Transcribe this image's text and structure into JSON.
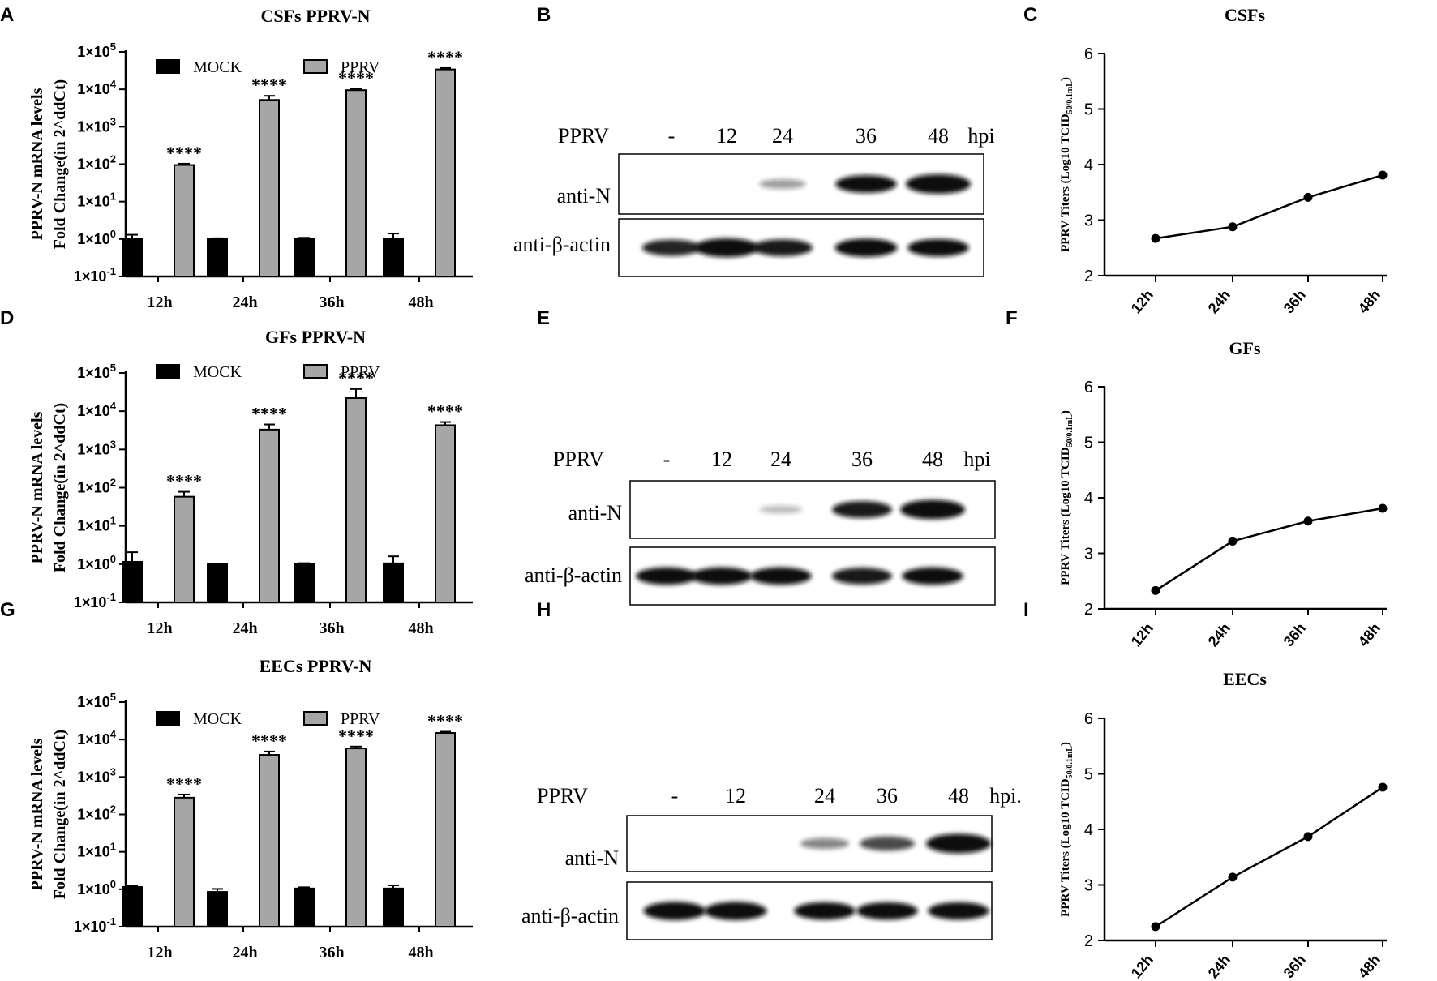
{
  "panel_labels": [
    "A",
    "B",
    "C",
    "D",
    "E",
    "F",
    "G",
    "H",
    "I"
  ],
  "colors": {
    "mock": "#000000",
    "pprv": "#a6a6a6",
    "line": "#000000",
    "blot_band": "#111111"
  },
  "chart_data": [
    {
      "panel": "A",
      "type": "bar",
      "title": "CSFs PPRV-N",
      "ylabel_lines": [
        "PPRV-N mRNA levels",
        "Fold Change(in 2^ddCt)"
      ],
      "yscale": "log10",
      "ylim_exp": [
        -1,
        5
      ],
      "yticks": [
        {
          "base": "1×10",
          "exp": "5"
        },
        {
          "base": "1×10",
          "exp": "4"
        },
        {
          "base": "1×10",
          "exp": "3"
        },
        {
          "base": "1×10",
          "exp": "2"
        },
        {
          "base": "1×10",
          "exp": "1"
        },
        {
          "base": "1×10",
          "exp": "0"
        },
        {
          "base": "1×10",
          "exp": "-1"
        }
      ],
      "categories": [
        "12h",
        "24h",
        "36h",
        "48h"
      ],
      "series": [
        {
          "name": "MOCK",
          "values": [
            1.0,
            1.0,
            1.0,
            1.0
          ],
          "errors": [
            0.3,
            0.05,
            0.08,
            0.4
          ]
        },
        {
          "name": "PPRV",
          "values": [
            95,
            5200,
            9500,
            34000
          ],
          "errors": [
            8,
            1500,
            900,
            3000
          ]
        }
      ],
      "significance": [
        "****",
        "****",
        "****",
        "****"
      ]
    },
    {
      "panel": "D",
      "type": "bar",
      "title": "GFs PPRV-N",
      "ylabel_lines": [
        "PPRV-N mRNA levels",
        "Fold Change(in 2^ddCt)"
      ],
      "yscale": "log10",
      "ylim_exp": [
        -1,
        5
      ],
      "yticks": [
        {
          "base": "1×10",
          "exp": "5"
        },
        {
          "base": "1×10",
          "exp": "4"
        },
        {
          "base": "1×10",
          "exp": "3"
        },
        {
          "base": "1×10",
          "exp": "2"
        },
        {
          "base": "1×10",
          "exp": "1"
        },
        {
          "base": "1×10",
          "exp": "0"
        },
        {
          "base": "1×10",
          "exp": "-1"
        }
      ],
      "categories": [
        "12h",
        "24h",
        "36h",
        "48h"
      ],
      "series": [
        {
          "name": "MOCK",
          "values": [
            1.15,
            1.0,
            1.0,
            1.05
          ],
          "errors": [
            0.9,
            0.04,
            0.06,
            0.55
          ]
        },
        {
          "name": "PPRV",
          "values": [
            58,
            3300,
            22000,
            4300
          ],
          "errors": [
            20,
            1200,
            16000,
            900
          ]
        }
      ],
      "significance": [
        "****",
        "****",
        "****",
        "****"
      ]
    },
    {
      "panel": "G",
      "type": "bar",
      "title": "EECs PPRV-N",
      "ylabel_lines": [
        "PPRV-N mRNA levels",
        "Fold Change(in 2^ddCt)"
      ],
      "yscale": "log10",
      "ylim_exp": [
        -1,
        5
      ],
      "yticks": [
        {
          "base": "1×10",
          "exp": "5"
        },
        {
          "base": "1×10",
          "exp": "4"
        },
        {
          "base": "1×10",
          "exp": "3"
        },
        {
          "base": "1×10",
          "exp": "2"
        },
        {
          "base": "1×10",
          "exp": "1"
        },
        {
          "base": "1×10",
          "exp": "0"
        },
        {
          "base": "1×10",
          "exp": "-1"
        }
      ],
      "categories": [
        "12h",
        "24h",
        "36h",
        "48h"
      ],
      "series": [
        {
          "name": "MOCK",
          "values": [
            1.15,
            0.85,
            1.05,
            1.05
          ],
          "errors": [
            0.1,
            0.17,
            0.08,
            0.22
          ]
        },
        {
          "name": "PPRV",
          "values": [
            280,
            3900,
            5800,
            15000
          ],
          "errors": [
            60,
            900,
            700,
            1200
          ]
        }
      ],
      "significance": [
        "****",
        "****",
        "****",
        "****"
      ]
    },
    {
      "panel": "C",
      "type": "line",
      "title": "CSFs",
      "ylabel": "PPRV Titers (Log10 TCID",
      "ylabel_sub": "50/0.1mL",
      "ylabel_end": ")",
      "ylim": [
        2,
        6
      ],
      "yticks": [
        "2",
        "3",
        "4",
        "5",
        "6"
      ],
      "x": [
        "12h",
        "24h",
        "36h",
        "48h"
      ],
      "y": [
        2.67,
        2.88,
        3.41,
        3.81
      ]
    },
    {
      "panel": "F",
      "type": "line",
      "title": "GFs",
      "ylabel": "PPRV Titers (Log10 TCID",
      "ylabel_sub": "50/0.1mL",
      "ylabel_end": ")",
      "ylim": [
        2,
        6
      ],
      "yticks": [
        "2",
        "3",
        "4",
        "5",
        "6"
      ],
      "x": [
        "12h",
        "24h",
        "36h",
        "48h"
      ],
      "y": [
        2.33,
        3.22,
        3.58,
        3.81
      ]
    },
    {
      "panel": "I",
      "type": "line",
      "title": "EECs",
      "ylabel": "PPRV Titers (Log10 TCID",
      "ylabel_sub": "50/0.1mL",
      "ylabel_end": ")",
      "ylim": [
        2,
        6
      ],
      "yticks": [
        "2",
        "3",
        "4",
        "5",
        "6"
      ],
      "x": [
        "12h",
        "24h",
        "36h",
        "48h"
      ],
      "y": [
        2.25,
        3.14,
        3.87,
        4.76
      ]
    }
  ],
  "blots": [
    {
      "panel": "B",
      "header_label": "PPRV",
      "lanes": [
        "-",
        "12",
        "24",
        "36",
        "48"
      ],
      "unit": "hpi",
      "rows": [
        {
          "label": "anti-N",
          "intensities": [
            0,
            0,
            0.25,
            0.85,
            1.0
          ]
        },
        {
          "label": "anti-β-actin",
          "intensities": [
            0.75,
            0.95,
            0.8,
            0.9,
            0.85
          ]
        }
      ]
    },
    {
      "panel": "E",
      "header_label": "PPRV",
      "lanes": [
        "-",
        "12",
        "24",
        "36",
        "48"
      ],
      "unit": "hpi",
      "rows": [
        {
          "label": "anti-N",
          "intensities": [
            0,
            0,
            0.12,
            0.8,
            1.0
          ]
        },
        {
          "label": "anti-β-actin",
          "intensities": [
            0.85,
            0.85,
            0.85,
            0.8,
            0.85
          ]
        }
      ]
    },
    {
      "panel": "H",
      "header_label": "PPRV",
      "lanes": [
        "-",
        "12",
        "24",
        "36",
        "48"
      ],
      "unit": "hpi.",
      "rows": [
        {
          "label": "anti-N",
          "intensities": [
            0,
            0,
            0.35,
            0.6,
            1.0
          ]
        },
        {
          "label": "anti-β-actin",
          "intensities": [
            0.9,
            0.9,
            0.85,
            0.85,
            0.85
          ]
        }
      ]
    }
  ]
}
